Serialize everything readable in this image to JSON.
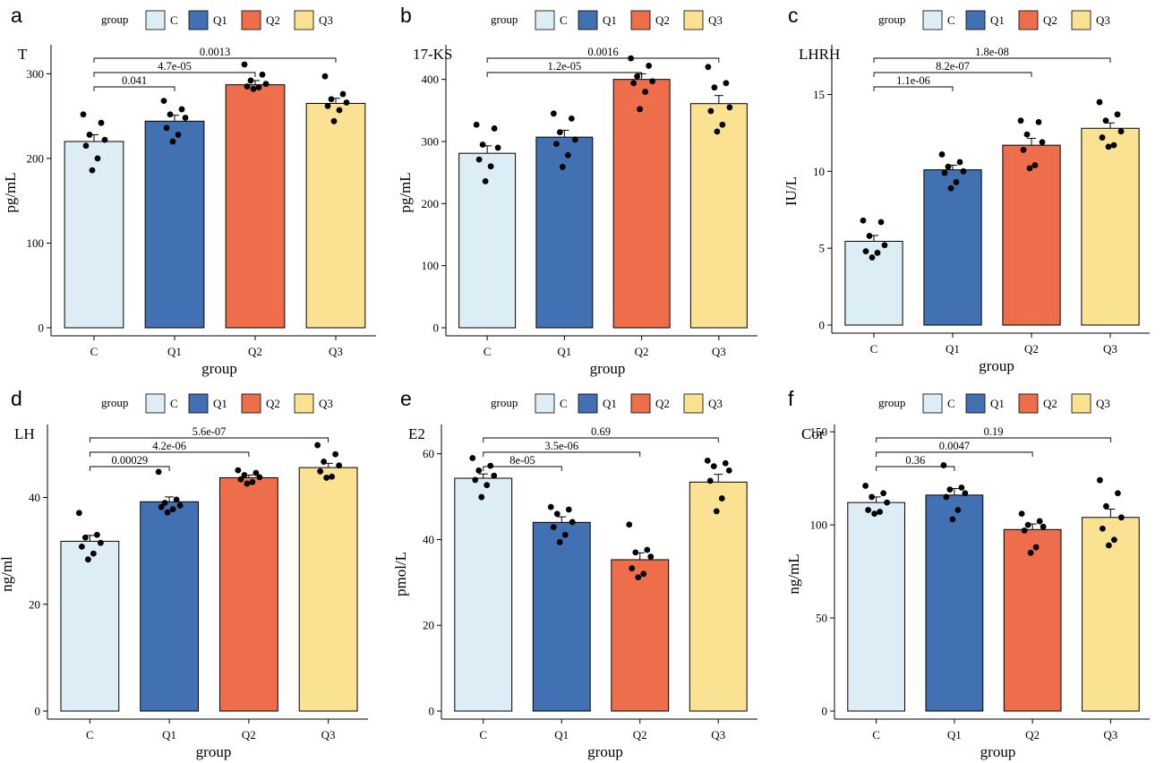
{
  "chart_data": [
    {
      "type": "bar",
      "panel": "a",
      "title": "T",
      "xlabel": "group",
      "ylabel": "pg/mL",
      "categories": [
        "C",
        "Q1",
        "Q2",
        "Q3"
      ],
      "values": [
        220,
        244,
        287,
        265
      ],
      "se": [
        8,
        7,
        5,
        6
      ],
      "points": [
        [
          252,
          242,
          228,
          222,
          215,
          200,
          186
        ],
        [
          268,
          258,
          252,
          248,
          236,
          228,
          220
        ],
        [
          311,
          299,
          292,
          288,
          285,
          284,
          282
        ],
        [
          297,
          276,
          270,
          266,
          262,
          257,
          244
        ]
      ],
      "ylim": [
        0,
        330
      ],
      "yticks": [
        0,
        100,
        200,
        300
      ],
      "comparisons": [
        {
          "pair": [
            "C",
            "Q1"
          ],
          "label": "0.041"
        },
        {
          "pair": [
            "C",
            "Q2"
          ],
          "label": "4.7e-05"
        },
        {
          "pair": [
            "C",
            "Q3"
          ],
          "label": "0.0013"
        }
      ]
    },
    {
      "type": "bar",
      "panel": "b",
      "title": "17-KS",
      "xlabel": "group",
      "ylabel": "pg/mL",
      "categories": [
        "C",
        "Q1",
        "Q2",
        "Q3"
      ],
      "values": [
        281,
        307,
        400,
        361
      ],
      "se": [
        12,
        11,
        9,
        13
      ],
      "points": [
        [
          327,
          321,
          295,
          290,
          271,
          260,
          236
        ],
        [
          345,
          337,
          315,
          303,
          296,
          278,
          259
        ],
        [
          434,
          422,
          405,
          397,
          394,
          380,
          352
        ],
        [
          420,
          394,
          387,
          355,
          349,
          327,
          316
        ]
      ],
      "ylim": [
        0,
        450
      ],
      "yticks": [
        0,
        100,
        200,
        300,
        400
      ],
      "comparisons": [
        {
          "pair": [
            "C",
            "Q2"
          ],
          "label": "1.2e-05"
        },
        {
          "pair": [
            "C",
            "Q3"
          ],
          "label": "0.0016"
        }
      ]
    },
    {
      "type": "bar",
      "panel": "c",
      "title": "LHRH",
      "xlabel": "group",
      "ylabel": "IU/L",
      "categories": [
        "C",
        "Q1",
        "Q2",
        "Q3"
      ],
      "values": [
        5.45,
        10.1,
        11.7,
        12.8
      ],
      "se": [
        0.38,
        0.3,
        0.45,
        0.35
      ],
      "points": [
        [
          6.8,
          6.7,
          5.8,
          5.2,
          4.8,
          4.7,
          4.4
        ],
        [
          11.1,
          10.6,
          10.3,
          10.0,
          9.9,
          9.3,
          8.9
        ],
        [
          13.3,
          13.2,
          12.4,
          11.9,
          11.4,
          10.4,
          10.2
        ],
        [
          14.5,
          13.7,
          13.3,
          12.6,
          12.2,
          11.7,
          11.6
        ]
      ],
      "ylim": [
        0,
        18
      ],
      "yticks": [
        0,
        5,
        10,
        15
      ],
      "comparisons": [
        {
          "pair": [
            "C",
            "Q1"
          ],
          "label": "1.1e-06"
        },
        {
          "pair": [
            "C",
            "Q2"
          ],
          "label": "8.2e-07"
        },
        {
          "pair": [
            "C",
            "Q3"
          ],
          "label": "1.8e-08"
        }
      ]
    },
    {
      "type": "bar",
      "panel": "d",
      "title": "LH",
      "xlabel": "group",
      "ylabel": "ng/ml",
      "categories": [
        "C",
        "Q1",
        "Q2",
        "Q3"
      ],
      "values": [
        31.8,
        39.2,
        43.7,
        45.6
      ],
      "se": [
        1.1,
        0.9,
        0.5,
        0.8
      ],
      "points": [
        [
          37.1,
          33.0,
          32.5,
          31.5,
          30.8,
          29.5,
          28.4
        ],
        [
          44.8,
          39.6,
          39.0,
          38.5,
          38.2,
          37.8,
          37.2
        ],
        [
          45.1,
          44.6,
          44.2,
          43.8,
          43.4,
          42.9,
          42.6
        ],
        [
          49.8,
          48.1,
          46.7,
          46.0,
          44.9,
          43.9,
          43.7
        ]
      ],
      "ylim": [
        0,
        53
      ],
      "yticks": [
        0,
        20,
        40
      ],
      "comparisons": [
        {
          "pair": [
            "C",
            "Q1"
          ],
          "label": "0.00029"
        },
        {
          "pair": [
            "C",
            "Q2"
          ],
          "label": "4.2e-06"
        },
        {
          "pair": [
            "C",
            "Q3"
          ],
          "label": "5.6e-07"
        }
      ]
    },
    {
      "type": "bar",
      "panel": "e",
      "title": "E2",
      "xlabel": "group",
      "ylabel": "pmol/L",
      "categories": [
        "C",
        "Q1",
        "Q2",
        "Q3"
      ],
      "values": [
        54.3,
        44.0,
        35.3,
        53.4
      ],
      "se": [
        1.0,
        1.3,
        1.6,
        1.8
      ],
      "points": [
        [
          59.0,
          57.2,
          56.1,
          54.9,
          53.9,
          52.7,
          49.9
        ],
        [
          47.6,
          47.0,
          46.0,
          44.1,
          42.9,
          41.1,
          39.4
        ],
        [
          43.5,
          37.6,
          37.0,
          36.0,
          33.3,
          32.0,
          31.2
        ],
        [
          58.4,
          57.8,
          57.1,
          56.1,
          53.7,
          49.6,
          46.6
        ]
      ],
      "ylim": [
        0,
        66
      ],
      "yticks": [
        0,
        20,
        40,
        60
      ],
      "comparisons": [
        {
          "pair": [
            "C",
            "Q1"
          ],
          "label": "8e-05"
        },
        {
          "pair": [
            "C",
            "Q2"
          ],
          "label": "3.5e-06"
        },
        {
          "pair": [
            "C",
            "Q3"
          ],
          "label": "0.69"
        }
      ]
    },
    {
      "type": "bar",
      "panel": "f",
      "title": "Cor",
      "xlabel": "group",
      "ylabel": "ng/mL",
      "categories": [
        "C",
        "Q1",
        "Q2",
        "Q3"
      ],
      "values": [
        112,
        116,
        97.5,
        104
      ],
      "se": [
        3,
        3.5,
        3,
        4.5
      ],
      "points": [
        [
          121,
          117,
          115,
          112,
          108,
          107,
          106
        ],
        [
          132,
          120,
          119,
          117,
          115,
          108,
          103
        ],
        [
          106,
          102,
          100,
          99,
          97,
          88,
          85
        ],
        [
          124,
          117,
          110,
          104,
          98,
          92,
          89
        ]
      ],
      "ylim": [
        0,
        152
      ],
      "yticks": [
        0,
        50,
        100,
        150
      ],
      "comparisons": [
        {
          "pair": [
            "C",
            "Q1"
          ],
          "label": "0.36"
        },
        {
          "pair": [
            "C",
            "Q2"
          ],
          "label": "0.0047"
        },
        {
          "pair": [
            "C",
            "Q3"
          ],
          "label": "0.19"
        }
      ]
    }
  ],
  "legend": {
    "title": "group",
    "items": [
      {
        "label": "C",
        "color": "#dcedf6"
      },
      {
        "label": "Q1",
        "color": "#4271b3"
      },
      {
        "label": "Q2",
        "color": "#ee6e4b"
      },
      {
        "label": "Q3",
        "color": "#fbe293"
      }
    ]
  }
}
